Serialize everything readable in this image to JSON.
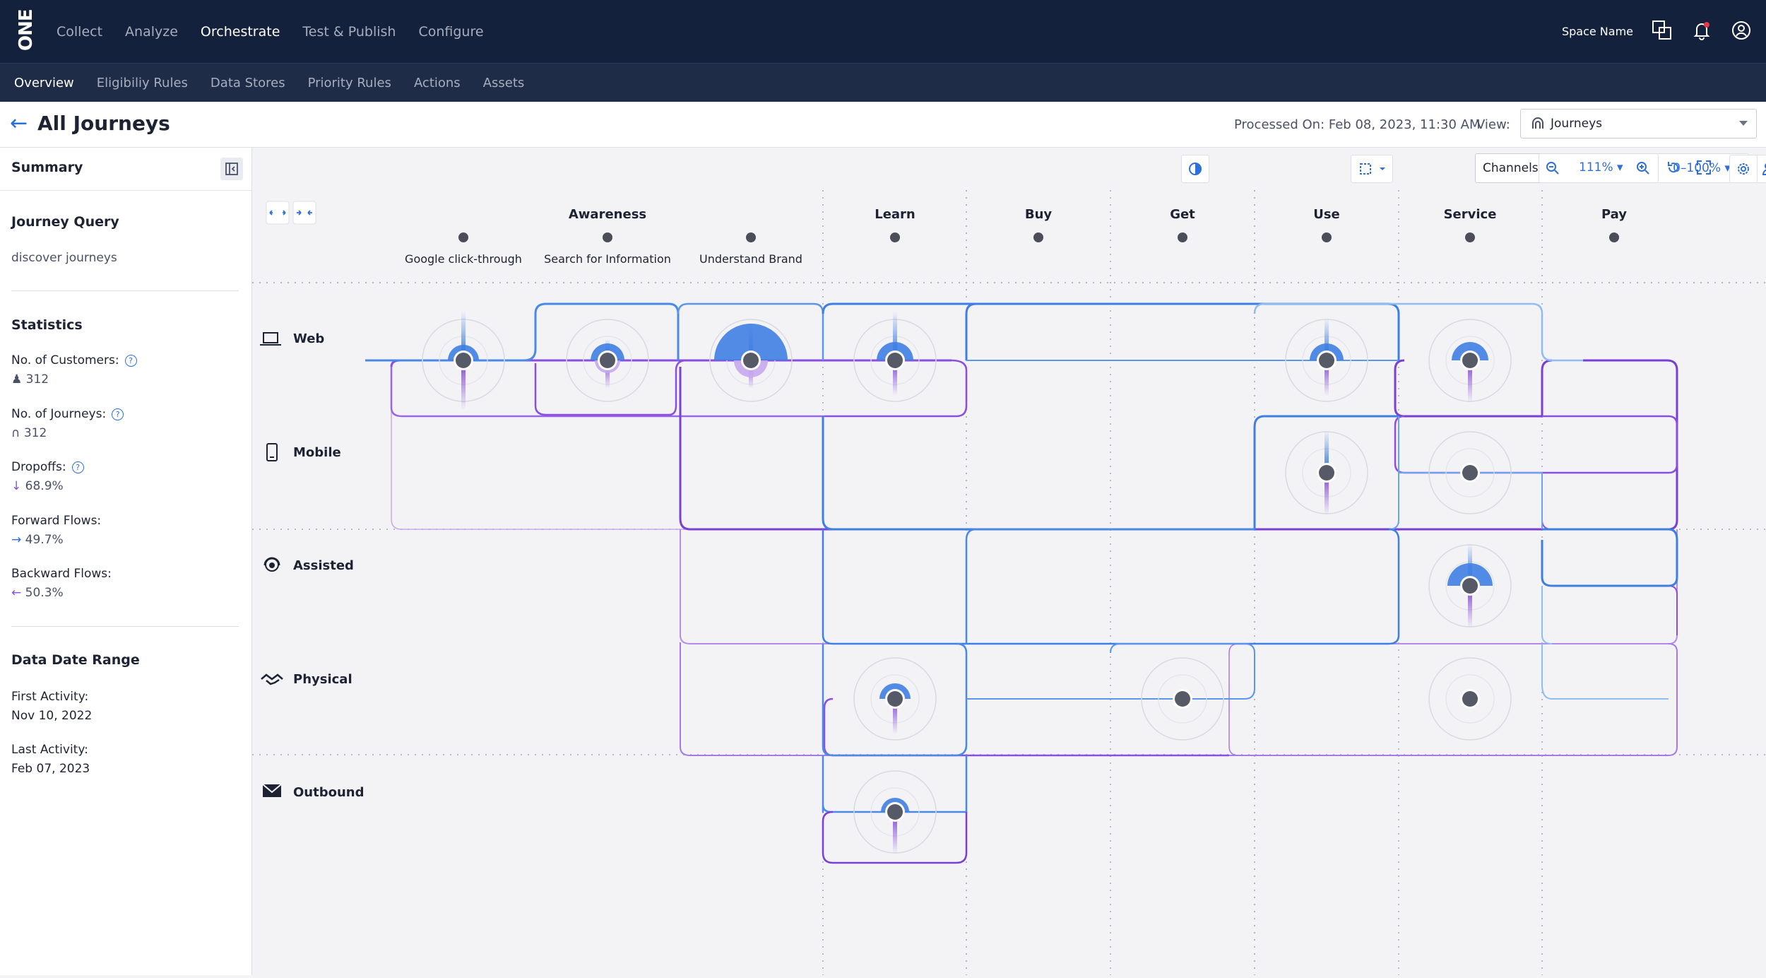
{
  "app": {
    "logo_text": "ONE"
  },
  "top_nav": {
    "items": [
      "Collect",
      "Analyze",
      "Orchestrate",
      "Test & Publish",
      "Configure"
    ],
    "active": "Orchestrate"
  },
  "top_right": {
    "space_name": "Space Name"
  },
  "sub_nav": {
    "items": [
      "Overview",
      "Eligibiliy Rules",
      "Data Stores",
      "Priority Rules",
      "Actions",
      "Assets"
    ],
    "active": "Overview"
  },
  "page": {
    "title": "All Journeys",
    "processed": "Processed On: Feb 08, 2023, 11:30 AM",
    "view_label": "View:",
    "view_value": "Journeys"
  },
  "summary": {
    "title": "Summary",
    "query_title": "Journey Query",
    "query_text": "discover journeys",
    "stats_title": "Statistics",
    "customers_label": "No. of Customers:",
    "customers_value": "312",
    "journeys_label": "No. of Journeys:",
    "journeys_value": "312",
    "dropoffs_label": "Dropoffs:",
    "dropoffs_value": "68.9%",
    "forward_label": "Forward Flows:",
    "forward_value": "49.7%",
    "backward_label": "Backward Flows:",
    "backward_value": "50.3%",
    "range_title": "Data Date Range",
    "first_label": "First Activity:",
    "first_value": "Nov 10, 2022",
    "last_label": "Last Activity:",
    "last_value": "Feb 07, 2023"
  },
  "toolbar": {
    "channels_value": "Channels",
    "range_value": "0–100%",
    "zoom_value": "111%"
  },
  "journey_map": {
    "stages": [
      "Awareness",
      "Learn",
      "Buy",
      "Get",
      "Use",
      "Service",
      "Pay"
    ],
    "steps": [
      "Google click-through",
      "Search for Information",
      "Understand Brand"
    ],
    "channels": [
      "Web",
      "Mobile",
      "Assisted",
      "Physical",
      "Outbound"
    ],
    "colors": {
      "blue": "#3f7fe3",
      "purple": "#8b4fe0",
      "light_blue": "#8fbdf2",
      "light_purple": "#c7a8f0",
      "node": "#565a66"
    }
  }
}
